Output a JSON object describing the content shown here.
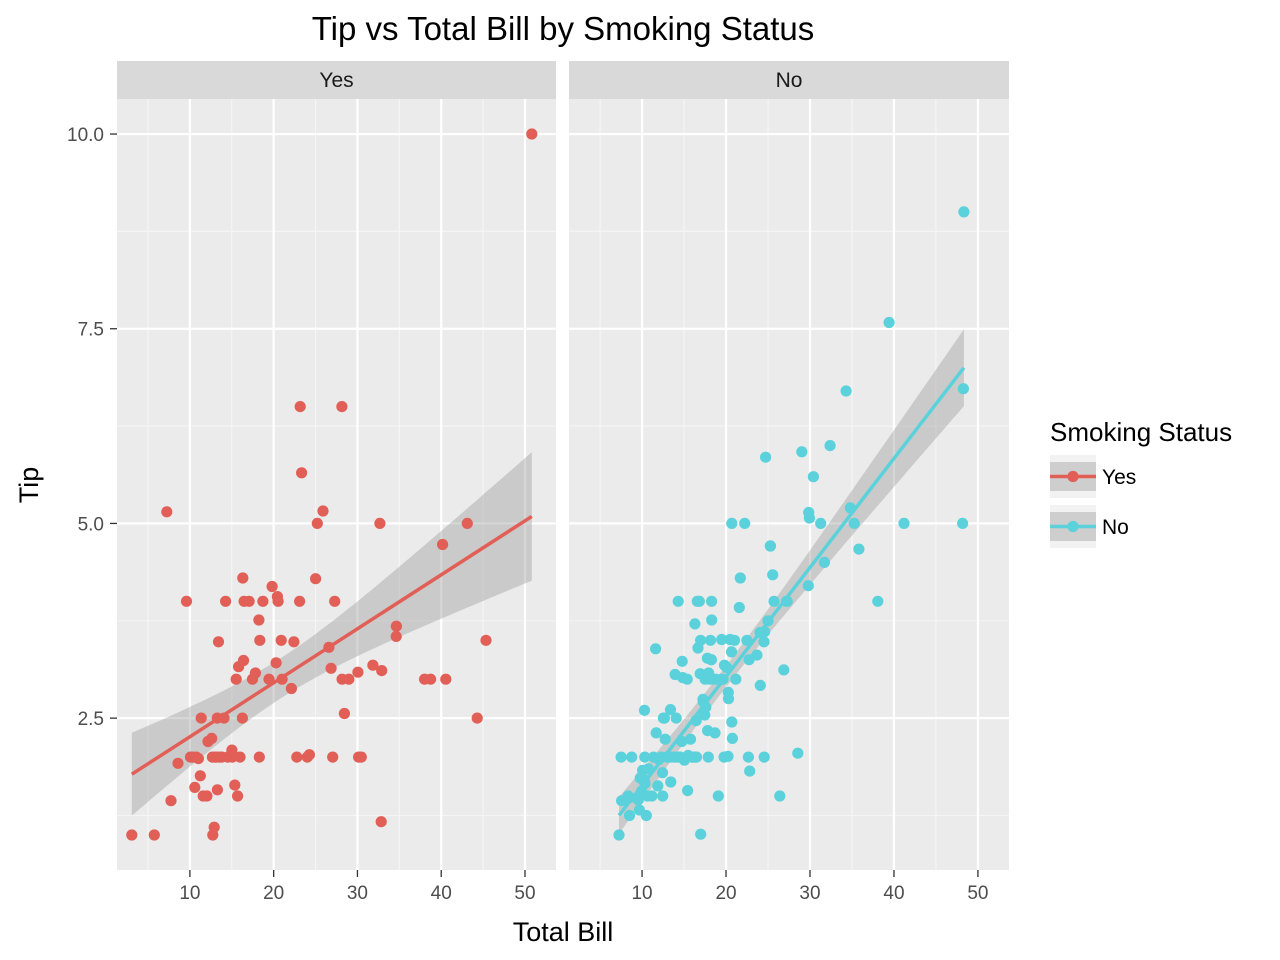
{
  "chart_data": {
    "type": "scatter",
    "title": "Tip vs Total Bill by Smoking Status",
    "xlabel": "Total Bill",
    "ylabel": "Tip",
    "xlim": [
      1.3,
      53.7
    ],
    "ylim": [
      0.55,
      10.45
    ],
    "x_ticks": [
      10,
      20,
      30,
      40,
      50
    ],
    "y_ticks": [
      2.5,
      5.0,
      7.5,
      10.0
    ],
    "x_tick_labels": [
      "10",
      "20",
      "30",
      "40",
      "50"
    ],
    "y_tick_labels": [
      "2.5",
      "5.0",
      "7.5",
      "10.0"
    ],
    "grid": true,
    "legend": {
      "title": "Smoking Status",
      "position": "right",
      "entries": [
        "Yes",
        "No"
      ]
    },
    "series": [
      {
        "name": "Yes",
        "panel": "Yes",
        "color": "#E15F57",
        "points": [
          [
            3.07,
            1.0
          ],
          [
            5.75,
            1.0
          ],
          [
            7.25,
            5.15
          ],
          [
            7.74,
            1.44
          ],
          [
            8.58,
            1.92
          ],
          [
            9.6,
            4.0
          ],
          [
            10.07,
            2.0
          ],
          [
            10.34,
            2.0
          ],
          [
            10.59,
            1.61
          ],
          [
            10.77,
            2.0
          ],
          [
            11.02,
            1.98
          ],
          [
            11.24,
            1.76
          ],
          [
            11.35,
            2.5
          ],
          [
            11.59,
            1.5
          ],
          [
            12.03,
            1.5
          ],
          [
            12.16,
            2.2
          ],
          [
            12.6,
            2.24
          ],
          [
            12.74,
            1.0
          ],
          [
            12.9,
            1.1
          ],
          [
            12.69,
            2.0
          ],
          [
            13.0,
            2.0
          ],
          [
            13.16,
            2.0
          ],
          [
            13.27,
            2.5
          ],
          [
            13.28,
            1.58
          ],
          [
            13.42,
            3.48
          ],
          [
            13.51,
            2.0
          ],
          [
            13.81,
            2.0
          ],
          [
            14.07,
            2.5
          ],
          [
            14.26,
            4.0
          ],
          [
            14.52,
            2.0
          ],
          [
            15.01,
            2.09
          ],
          [
            15.06,
            2.0
          ],
          [
            15.36,
            1.64
          ],
          [
            15.53,
            3.0
          ],
          [
            15.69,
            1.5
          ],
          [
            15.81,
            3.16
          ],
          [
            15.98,
            2.0
          ],
          [
            16.27,
            2.5
          ],
          [
            16.32,
            4.3
          ],
          [
            16.4,
            3.24
          ],
          [
            16.47,
            4.0
          ],
          [
            17.07,
            4.0
          ],
          [
            17.47,
            3.0
          ],
          [
            17.82,
            3.08
          ],
          [
            18.24,
            3.76
          ],
          [
            18.29,
            2.0
          ],
          [
            18.35,
            3.5
          ],
          [
            18.71,
            4.0
          ],
          [
            19.44,
            3.0
          ],
          [
            19.81,
            4.19
          ],
          [
            20.29,
            3.21
          ],
          [
            20.45,
            4.06
          ],
          [
            20.53,
            4.0
          ],
          [
            20.9,
            3.5
          ],
          [
            21.01,
            3.0
          ],
          [
            22.12,
            2.88
          ],
          [
            22.42,
            3.48
          ],
          [
            22.76,
            2.0
          ],
          [
            23.1,
            4.0
          ],
          [
            23.17,
            6.5
          ],
          [
            23.33,
            5.65
          ],
          [
            24.01,
            2.0
          ],
          [
            24.27,
            2.03
          ],
          [
            25.0,
            4.29
          ],
          [
            25.21,
            5.0
          ],
          [
            25.89,
            5.16
          ],
          [
            26.59,
            3.41
          ],
          [
            26.86,
            3.14
          ],
          [
            27.05,
            2.0
          ],
          [
            27.28,
            4.0
          ],
          [
            28.15,
            6.5
          ],
          [
            28.17,
            3.0
          ],
          [
            28.44,
            2.56
          ],
          [
            28.97,
            3.0
          ],
          [
            30.06,
            3.09
          ],
          [
            30.14,
            2.0
          ],
          [
            30.46,
            2.0
          ],
          [
            31.85,
            3.18
          ],
          [
            32.68,
            5.0
          ],
          [
            32.83,
            1.17
          ],
          [
            32.9,
            3.11
          ],
          [
            34.63,
            3.55
          ],
          [
            34.65,
            3.68
          ],
          [
            38.01,
            3.0
          ],
          [
            38.73,
            3.0
          ],
          [
            40.17,
            4.73
          ],
          [
            40.55,
            3.0
          ],
          [
            43.11,
            5.0
          ],
          [
            44.3,
            2.5
          ],
          [
            45.35,
            3.5
          ],
          [
            50.81,
            10.0
          ]
        ],
        "fit_line": {
          "x": [
            3.07,
            50.81
          ],
          "y": [
            1.78,
            5.09
          ]
        }
      },
      {
        "name": "No",
        "panel": "No",
        "color": "#5BD2DB",
        "points": [
          [
            7.25,
            1.0
          ],
          [
            7.51,
            2.0
          ],
          [
            7.56,
            1.44
          ],
          [
            8.35,
            1.5
          ],
          [
            8.51,
            1.25
          ],
          [
            8.52,
            1.48
          ],
          [
            8.77,
            2.0
          ],
          [
            9.55,
            1.45
          ],
          [
            9.68,
            1.32
          ],
          [
            9.78,
            1.73
          ],
          [
            9.94,
            1.56
          ],
          [
            10.07,
            1.83
          ],
          [
            10.27,
            1.71
          ],
          [
            10.29,
            2.6
          ],
          [
            10.33,
            1.67
          ],
          [
            10.34,
            1.66
          ],
          [
            10.33,
            2.0
          ],
          [
            10.51,
            1.25
          ],
          [
            10.65,
            1.5
          ],
          [
            10.76,
            1.85
          ],
          [
            11.17,
            1.5
          ],
          [
            11.38,
            2.0
          ],
          [
            11.61,
            3.39
          ],
          [
            11.69,
            2.31
          ],
          [
            11.87,
            1.63
          ],
          [
            12.02,
            1.97
          ],
          [
            12.26,
            2.0
          ],
          [
            12.43,
            1.8
          ],
          [
            12.46,
            1.5
          ],
          [
            12.54,
            2.5
          ],
          [
            12.66,
            2.5
          ],
          [
            12.76,
            2.23
          ],
          [
            13.0,
            2.0
          ],
          [
            13.03,
            2.0
          ],
          [
            13.13,
            2.0
          ],
          [
            13.37,
            2.0
          ],
          [
            13.39,
            2.61
          ],
          [
            13.42,
            1.68
          ],
          [
            13.81,
            2.0
          ],
          [
            13.94,
            3.06
          ],
          [
            14.07,
            2.5
          ],
          [
            14.15,
            2.0
          ],
          [
            14.31,
            4.0
          ],
          [
            14.48,
            2.0
          ],
          [
            14.52,
            2.0
          ],
          [
            14.73,
            2.2
          ],
          [
            14.78,
            3.23
          ],
          [
            14.83,
            3.02
          ],
          [
            15.04,
            1.96
          ],
          [
            15.38,
            3.0
          ],
          [
            15.42,
            1.57
          ],
          [
            15.48,
            2.02
          ],
          [
            15.77,
            2.23
          ],
          [
            15.95,
            2.0
          ],
          [
            16.0,
            2.0
          ],
          [
            16.21,
            2.0
          ],
          [
            16.29,
            3.71
          ],
          [
            16.31,
            2.0
          ],
          [
            16.45,
            2.47
          ],
          [
            16.49,
            2.0
          ],
          [
            16.58,
            4.0
          ],
          [
            16.66,
            3.4
          ],
          [
            16.82,
            4.0
          ],
          [
            16.93,
            3.07
          ],
          [
            16.97,
            3.5
          ],
          [
            16.99,
            1.01
          ],
          [
            17.26,
            2.74
          ],
          [
            17.29,
            2.71
          ],
          [
            17.46,
            2.54
          ],
          [
            17.51,
            3.0
          ],
          [
            17.59,
            2.64
          ],
          [
            17.78,
            3.27
          ],
          [
            17.81,
            2.34
          ],
          [
            17.89,
            2.0
          ],
          [
            17.92,
            3.08
          ],
          [
            18.04,
            3.0
          ],
          [
            18.15,
            3.5
          ],
          [
            18.24,
            3.25
          ],
          [
            18.26,
            3.25
          ],
          [
            18.28,
            4.0
          ],
          [
            18.43,
            3.0
          ],
          [
            18.69,
            2.31
          ],
          [
            18.78,
            3.0
          ],
          [
            18.29,
            3.76
          ],
          [
            19.08,
            1.5
          ],
          [
            19.44,
            3.0
          ],
          [
            19.49,
            3.51
          ],
          [
            19.65,
            3.0
          ],
          [
            19.77,
            2.0
          ],
          [
            19.82,
            3.18
          ],
          [
            20.08,
            3.15
          ],
          [
            20.23,
            2.01
          ],
          [
            20.27,
            2.83
          ],
          [
            20.29,
            2.75
          ],
          [
            20.49,
            3.51
          ],
          [
            20.69,
            2.45
          ],
          [
            20.76,
            2.24
          ],
          [
            20.65,
            3.35
          ],
          [
            20.69,
            5.0
          ],
          [
            21.16,
            3.0
          ],
          [
            21.01,
            3.5
          ],
          [
            21.58,
            3.92
          ],
          [
            21.7,
            4.3
          ],
          [
            22.23,
            5.0
          ],
          [
            22.49,
            3.5
          ],
          [
            22.67,
            2.0
          ],
          [
            22.75,
            3.25
          ],
          [
            22.82,
            1.82
          ],
          [
            23.68,
            3.31
          ],
          [
            24.06,
            3.6
          ],
          [
            24.08,
            2.92
          ],
          [
            24.52,
            3.48
          ],
          [
            24.55,
            2.0
          ],
          [
            24.59,
            3.61
          ],
          [
            24.71,
            5.85
          ],
          [
            25.0,
            3.75
          ],
          [
            25.28,
            4.71
          ],
          [
            25.29,
            4.71
          ],
          [
            25.56,
            4.34
          ],
          [
            25.71,
            4.0
          ],
          [
            26.41,
            1.5
          ],
          [
            26.88,
            3.12
          ],
          [
            27.2,
            4.0
          ],
          [
            27.28,
            4.0
          ],
          [
            28.55,
            2.05
          ],
          [
            29.03,
            5.92
          ],
          [
            29.8,
            4.2
          ],
          [
            29.85,
            5.14
          ],
          [
            29.93,
            5.07
          ],
          [
            30.4,
            5.6
          ],
          [
            31.27,
            5.0
          ],
          [
            31.71,
            4.5
          ],
          [
            32.4,
            6.0
          ],
          [
            34.3,
            6.7
          ],
          [
            34.81,
            5.2
          ],
          [
            35.26,
            5.0
          ],
          [
            35.83,
            4.67
          ],
          [
            38.07,
            4.0
          ],
          [
            39.42,
            7.58
          ],
          [
            41.19,
            5.0
          ],
          [
            48.17,
            5.0
          ],
          [
            48.27,
            6.73
          ],
          [
            48.33,
            9.0
          ]
        ],
        "fit_line": {
          "x": [
            7.25,
            48.33
          ],
          "y": [
            1.25,
            7.0
          ]
        }
      }
    ]
  }
}
